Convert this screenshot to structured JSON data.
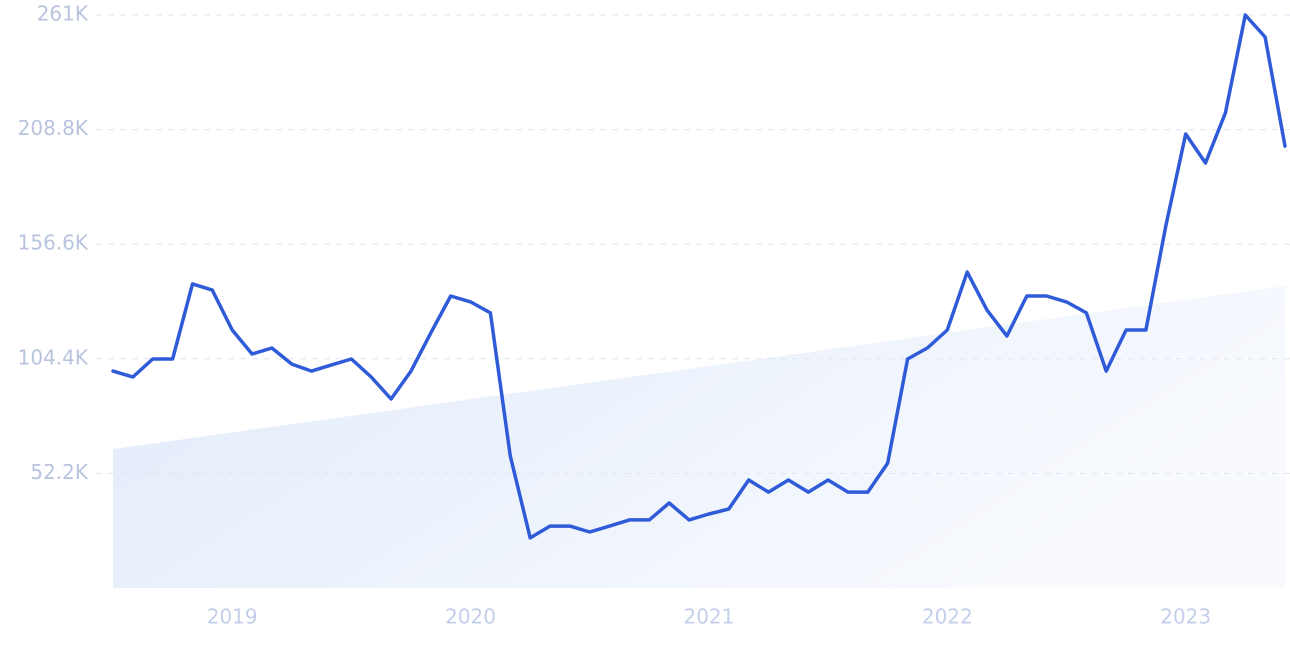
{
  "chart_data": {
    "type": "line",
    "categories": [
      null,
      null,
      null,
      null,
      null,
      null,
      "2019",
      null,
      null,
      null,
      null,
      null,
      null,
      null,
      null,
      null,
      null,
      null,
      "2020",
      null,
      null,
      null,
      null,
      null,
      null,
      null,
      null,
      null,
      null,
      null,
      "2021",
      null,
      null,
      null,
      null,
      null,
      null,
      null,
      null,
      null,
      null,
      null,
      "2022",
      null,
      null,
      null,
      null,
      null,
      null,
      null,
      null,
      null,
      null,
      null,
      "2023",
      null,
      null,
      null,
      null,
      null
    ],
    "series": [
      {
        "color": "#2f5bd8",
        "values": [
          98800,
          96100,
          104300,
          104300,
          138500,
          135700,
          117500,
          106600,
          109300,
          102000,
          98800,
          101600,
          104300,
          96100,
          86100,
          98800,
          116200,
          133000,
          130300,
          125300,
          60100,
          22800,
          28200,
          28200,
          25500,
          28200,
          31000,
          31000,
          38700,
          31000,
          33700,
          36000,
          49200,
          43700,
          49200,
          43700,
          49200,
          43700,
          43700,
          56900,
          104300,
          109300,
          117500,
          143900,
          126600,
          114800,
          133000,
          133000,
          130300,
          125300,
          98800,
          117500,
          117500,
          164900,
          206800,
          193600,
          216400,
          261000,
          251000,
          201300
        ]
      }
    ],
    "trend": [
      63300,
      137600
    ],
    "ylim": [
      0,
      261000
    ],
    "yticks": [
      {
        "value": 52200,
        "label": "52.2K"
      },
      {
        "value": 104400,
        "label": "104.4K"
      },
      {
        "value": 156600,
        "label": "156.6K"
      },
      {
        "value": 208800,
        "label": "208.8K"
      },
      {
        "value": 261000,
        "label": "261K"
      }
    ],
    "grid": true
  }
}
